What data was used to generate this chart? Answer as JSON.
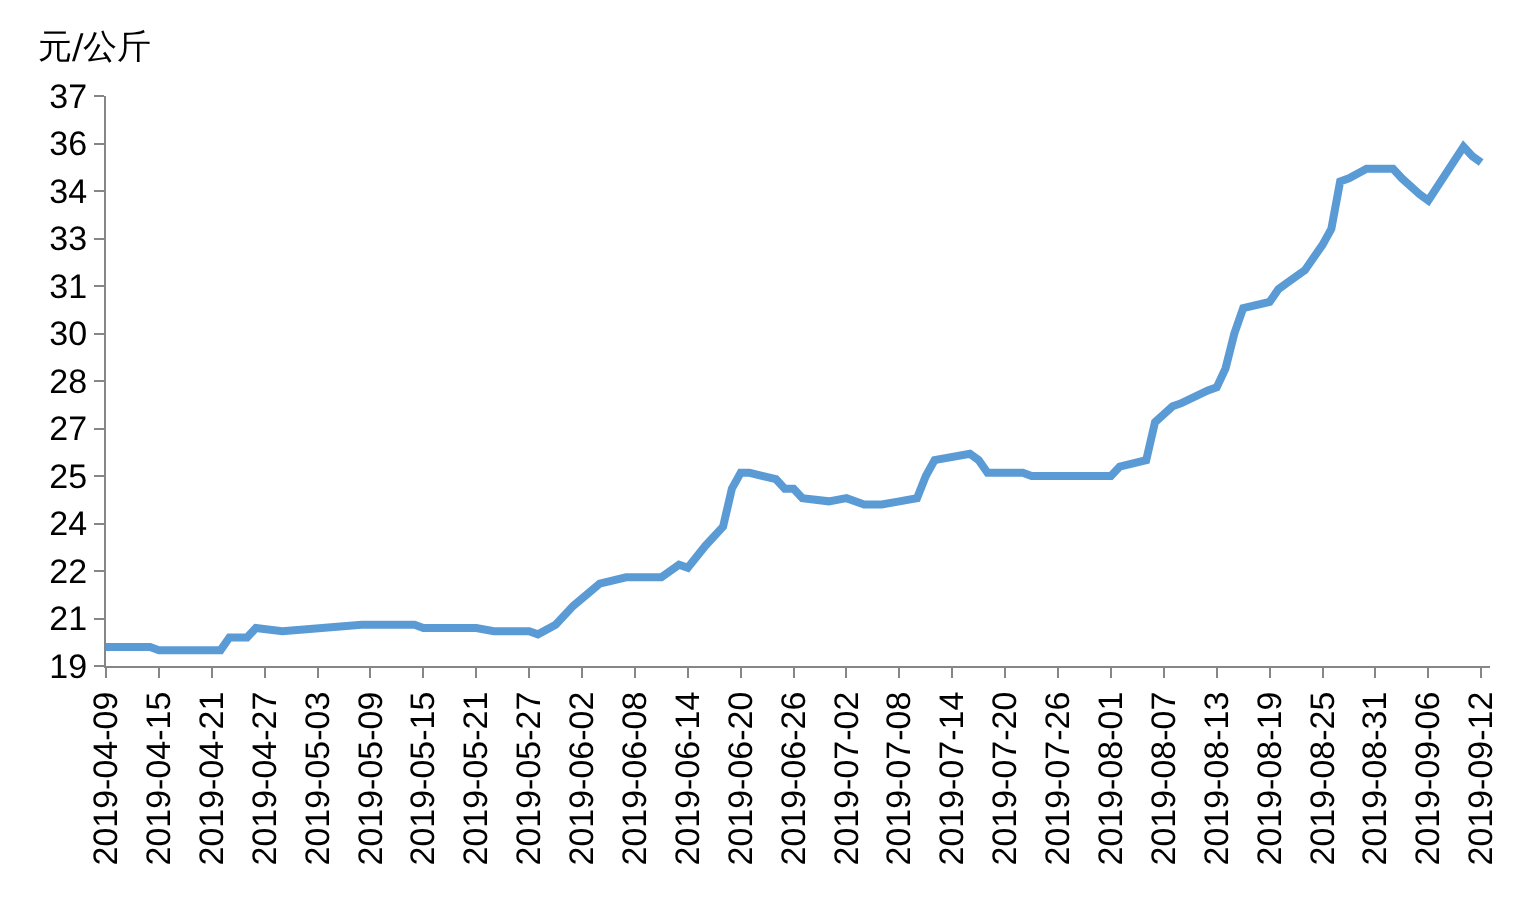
{
  "chart_data": {
    "type": "line",
    "ylabel": "元/公斤",
    "color": "#5b9bd5",
    "marker": "none",
    "line_style": "solid",
    "grid": false,
    "x": [
      "2019-04-09",
      "2019-04-14",
      "2019-04-15",
      "2019-04-22",
      "2019-04-23",
      "2019-04-25",
      "2019-04-26",
      "2019-04-29",
      "2019-05-08",
      "2019-05-14",
      "2019-05-15",
      "2019-05-21",
      "2019-05-23",
      "2019-05-27",
      "2019-05-28",
      "2019-05-30",
      "2019-06-01",
      "2019-06-04",
      "2019-06-07",
      "2019-06-11",
      "2019-06-13",
      "2019-06-14",
      "2019-06-16",
      "2019-06-18",
      "2019-06-19",
      "2019-06-20",
      "2019-06-21",
      "2019-06-24",
      "2019-06-25",
      "2019-06-26",
      "2019-06-27",
      "2019-06-30",
      "2019-07-02",
      "2019-07-04",
      "2019-07-06",
      "2019-07-08",
      "2019-07-10",
      "2019-07-11",
      "2019-07-12",
      "2019-07-16",
      "2019-07-17",
      "2019-07-18",
      "2019-07-22",
      "2019-07-23",
      "2019-08-01",
      "2019-08-02",
      "2019-08-05",
      "2019-08-06",
      "2019-08-08",
      "2019-08-09",
      "2019-08-12",
      "2019-08-13",
      "2019-08-14",
      "2019-08-15",
      "2019-08-16",
      "2019-08-19",
      "2019-08-20",
      "2019-08-21",
      "2019-08-23",
      "2019-08-25",
      "2019-08-26",
      "2019-08-27",
      "2019-08-28",
      "2019-08-30",
      "2019-09-02",
      "2019-09-03",
      "2019-09-05",
      "2019-09-06",
      "2019-09-10",
      "2019-09-11",
      "2019-09-12"
    ],
    "values": [
      19.6,
      19.6,
      19.5,
      19.5,
      19.9,
      19.9,
      20.2,
      20.1,
      20.3,
      20.3,
      20.2,
      20.2,
      20.1,
      20.1,
      20.0,
      20.3,
      20.9,
      21.6,
      21.8,
      21.8,
      22.2,
      22.1,
      22.8,
      23.4,
      24.6,
      25.1,
      25.1,
      24.9,
      24.6,
      24.6,
      24.3,
      24.2,
      24.3,
      24.1,
      24.1,
      24.2,
      24.3,
      25.0,
      25.5,
      25.7,
      25.5,
      25.1,
      25.1,
      25.0,
      25.0,
      25.3,
      25.5,
      26.7,
      27.2,
      27.3,
      27.7,
      27.8,
      28.4,
      29.5,
      30.3,
      30.5,
      30.9,
      31.1,
      31.5,
      32.3,
      32.8,
      34.3,
      34.4,
      34.7,
      34.7,
      34.4,
      33.9,
      33.7,
      35.4,
      35.1,
      34.9
    ],
    "xlim": [
      "2019-04-09",
      "2019-09-13"
    ],
    "xticks": [
      "2019-04-09",
      "2019-04-15",
      "2019-04-21",
      "2019-04-27",
      "2019-05-03",
      "2019-05-09",
      "2019-05-15",
      "2019-05-21",
      "2019-05-27",
      "2019-06-02",
      "2019-06-08",
      "2019-06-14",
      "2019-06-20",
      "2019-06-26",
      "2019-07-02",
      "2019-07-08",
      "2019-07-14",
      "2019-07-20",
      "2019-07-26",
      "2019-08-01",
      "2019-08-07",
      "2019-08-13",
      "2019-08-19",
      "2019-08-25",
      "2019-08-31",
      "2019-09-06",
      "2019-09-12"
    ],
    "ylim": [
      19,
      37
    ],
    "yticks": [
      19,
      {
        "value": 20.5,
        "label": "21"
      },
      22,
      {
        "value": 23.5,
        "label": "24"
      },
      25,
      {
        "value": 26.5,
        "label": "27"
      },
      28,
      {
        "value": 29.5,
        "label": "30"
      },
      31,
      {
        "value": 32.5,
        "label": "33"
      },
      34,
      {
        "value": 35.5,
        "label": "36"
      },
      37
    ]
  }
}
